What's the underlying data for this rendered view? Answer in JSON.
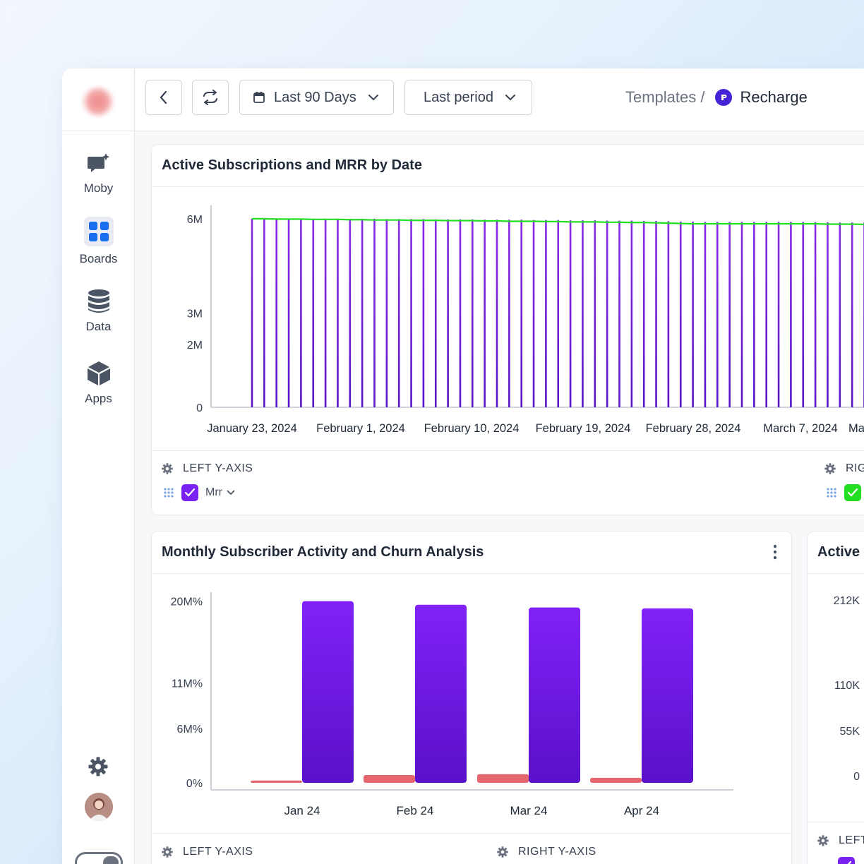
{
  "nav": {
    "items": [
      {
        "label": "Moby",
        "icon": "chat-sparkle-icon"
      },
      {
        "label": "Boards",
        "icon": "grid-icon"
      },
      {
        "label": "Data",
        "icon": "database-icon"
      },
      {
        "label": "Apps",
        "icon": "cube-icon"
      }
    ]
  },
  "topbar": {
    "date_range": "Last 90 Days",
    "compare": "Last period",
    "breadcrumb_parent": "Templates /",
    "breadcrumb_current": "Recharge"
  },
  "card1": {
    "title": "Active Subscriptions and MRR by Date",
    "left_axis_label": "LEFT Y-AXIS",
    "right_axis_label": "RIG",
    "series_left_name": "Mrr",
    "colors": {
      "bar": "#6a1fe0",
      "line": "#22dd22"
    }
  },
  "card2": {
    "title": "Monthly Subscriber Activity and Churn Analysis",
    "left_axis_label": "LEFT Y-AXIS",
    "right_axis_label": "RIGHT Y-AXIS",
    "colors": {
      "bar": "#7a22f0",
      "small_bar": "#e5666e"
    }
  },
  "card3": {
    "title": "Active",
    "left_axis_label": "LEFT"
  },
  "chart_data": [
    {
      "type": "bar",
      "title": "Active Subscriptions and MRR by Date",
      "y_ticks": [
        "0",
        "2M",
        "3M",
        "6M"
      ],
      "y_tick_values": [
        0,
        2,
        3,
        6
      ],
      "ylim": [
        0,
        6.2
      ],
      "x_tick_labels": [
        "January 23, 2024",
        "February 1, 2024",
        "February 10, 2024",
        "February 19, 2024",
        "February 28, 2024",
        "March 7, 2024",
        "Ma"
      ],
      "series": [
        {
          "values": [
            6.0,
            6.0,
            6.0,
            6.0,
            6.0,
            6.0,
            6.0,
            6.0,
            6.0,
            6.0,
            6.0,
            5.99,
            5.99,
            5.99,
            5.99,
            5.98,
            5.98,
            5.98,
            5.98,
            5.97,
            5.97,
            5.97,
            5.97,
            5.96,
            5.96,
            5.96,
            5.95,
            5.95,
            5.95,
            5.94,
            5.94,
            5.94,
            5.93,
            5.93,
            5.92,
            5.91,
            5.91,
            5.9,
            5.9,
            5.9,
            5.9,
            5.9,
            5.9,
            5.9,
            5.9,
            5.9,
            5.89,
            5.89,
            5.88,
            5.88,
            5.88,
            5.87,
            5.87
          ]
        },
        {
          "values": [
            6.0,
            6.0,
            5.99,
            5.99,
            5.99,
            5.98,
            5.98,
            5.98,
            5.97,
            5.97,
            5.96,
            5.96,
            5.96,
            5.95,
            5.95,
            5.95,
            5.94,
            5.94,
            5.94,
            5.93,
            5.93,
            5.92,
            5.92,
            5.92,
            5.91,
            5.91,
            5.9,
            5.9,
            5.9,
            5.89,
            5.89,
            5.88,
            5.88,
            5.87,
            5.86,
            5.85,
            5.84,
            5.84,
            5.84,
            5.84,
            5.84,
            5.84,
            5.84,
            5.84,
            5.84,
            5.84,
            5.84,
            5.83,
            5.83,
            5.83,
            5.82,
            5.82,
            5.82
          ]
        }
      ]
    },
    {
      "type": "bar",
      "title": "Monthly Subscriber Activity and Churn Analysis",
      "categories": [
        "Jan 24",
        "Feb 24",
        "Mar 24",
        "Apr 24"
      ],
      "y_ticks": [
        "0%",
        "6M%",
        "11M%",
        "20M%"
      ],
      "y_tick_values": [
        0,
        6,
        11,
        20
      ],
      "ylim": [
        0,
        20.2
      ],
      "series": [
        {
          "values": [
            0.1,
            0.7,
            0.8,
            0.4
          ]
        },
        {
          "values": [
            20.0,
            19.6,
            19.3,
            19.2
          ]
        }
      ]
    },
    {
      "type": "bar",
      "title": "Active",
      "y_ticks": [
        "0",
        "55K",
        "110K",
        "212K"
      ]
    }
  ]
}
